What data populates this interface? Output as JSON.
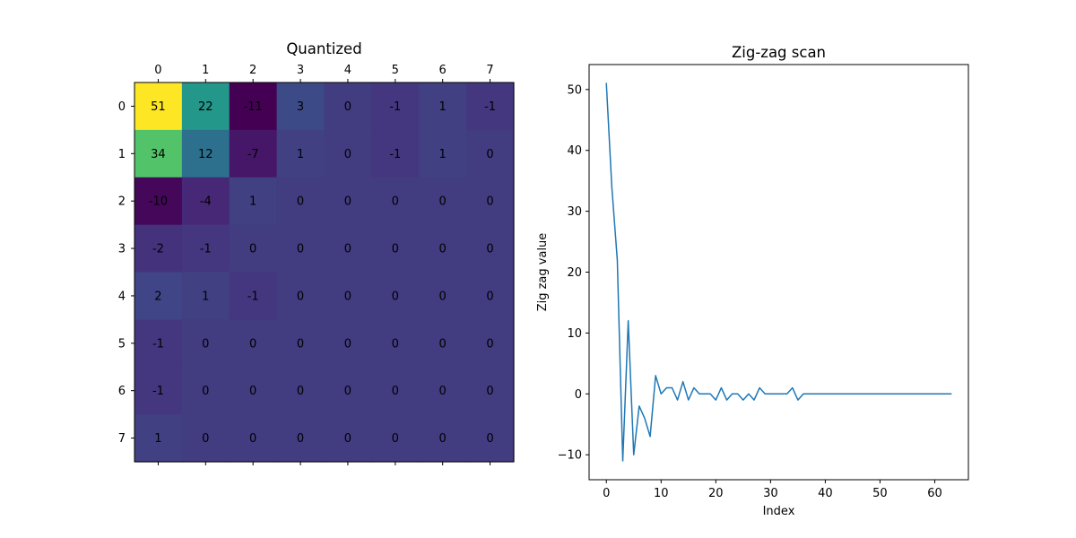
{
  "chart_data": [
    {
      "type": "heatmap",
      "title": "Quantized",
      "x_ticks": [
        "0",
        "1",
        "2",
        "3",
        "4",
        "5",
        "6",
        "7"
      ],
      "y_ticks": [
        "0",
        "1",
        "2",
        "3",
        "4",
        "5",
        "6",
        "7"
      ],
      "x_tick_position": "top",
      "colormap": "viridis",
      "value_range": [
        -11,
        51
      ],
      "values": [
        [
          51,
          22,
          -11,
          3,
          0,
          -1,
          1,
          -1
        ],
        [
          34,
          12,
          -7,
          1,
          0,
          -1,
          1,
          0
        ],
        [
          -10,
          -4,
          1,
          0,
          0,
          0,
          0,
          0
        ],
        [
          -2,
          -1,
          0,
          0,
          0,
          0,
          0,
          0
        ],
        [
          2,
          1,
          -1,
          0,
          0,
          0,
          0,
          0
        ],
        [
          -1,
          0,
          0,
          0,
          0,
          0,
          0,
          0
        ],
        [
          -1,
          0,
          0,
          0,
          0,
          0,
          0,
          0
        ],
        [
          1,
          0,
          0,
          0,
          0,
          0,
          0,
          0
        ]
      ]
    },
    {
      "type": "line",
      "title": "Zig-zag scan",
      "xlabel": "Index",
      "ylabel": "Zig zag value",
      "xlim": [
        -3.15,
        66.15
      ],
      "ylim": [
        -14.1,
        54.1
      ],
      "x_ticks": [
        0,
        10,
        20,
        30,
        40,
        50,
        60
      ],
      "y_ticks": [
        -10,
        0,
        10,
        20,
        30,
        40,
        50
      ],
      "color": "#1f77b4",
      "x_start": 0,
      "values": [
        51,
        34,
        22,
        -11,
        12,
        -10,
        -2,
        -4,
        -7,
        3,
        0,
        1,
        1,
        -1,
        2,
        -1,
        1,
        0,
        0,
        0,
        -1,
        1,
        -1,
        0,
        0,
        -1,
        0,
        -1,
        1,
        0,
        0,
        0,
        0,
        0,
        1,
        -1,
        0,
        0,
        0,
        0,
        0,
        0,
        0,
        0,
        0,
        0,
        0,
        0,
        0,
        0,
        0,
        0,
        0,
        0,
        0,
        0,
        0,
        0,
        0,
        0,
        0,
        0,
        0,
        0
      ]
    }
  ]
}
